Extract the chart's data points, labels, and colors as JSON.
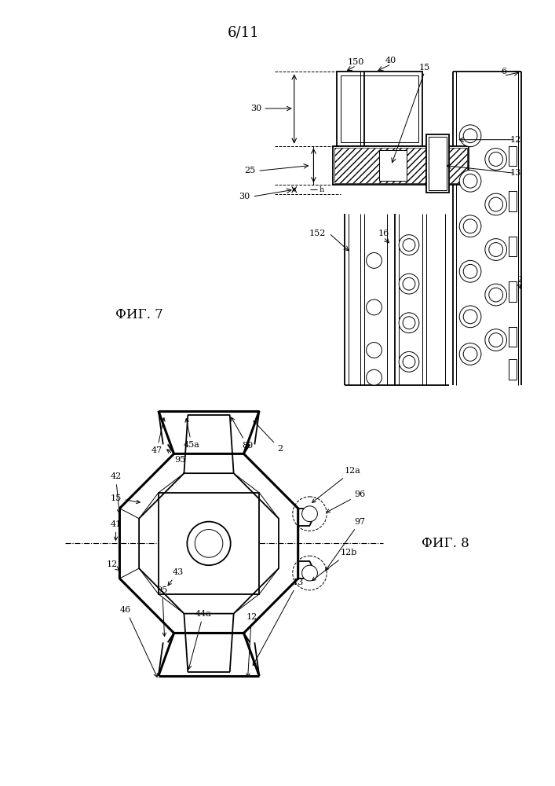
{
  "page_label": "6/11",
  "fig7_label": "ФИГ. 7",
  "fig8_label": "ФИГ. 8",
  "line_color": "#000000",
  "bg_color": "#ffffff",
  "lw_thin": 0.7,
  "lw_medium": 1.3,
  "lw_thick": 2.2
}
